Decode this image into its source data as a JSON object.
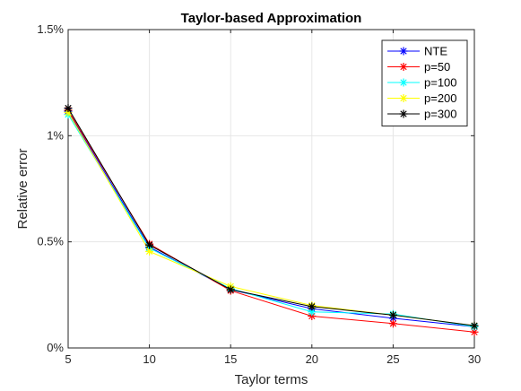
{
  "chart_data": {
    "type": "line",
    "title": "Taylor-based Approximation",
    "xlabel": "Taylor terms",
    "ylabel": "Relative error",
    "x": [
      5,
      10,
      15,
      20,
      25,
      30
    ],
    "xlim": [
      5,
      30
    ],
    "ylim": [
      0,
      1.5
    ],
    "x_ticks": [
      "5",
      "10",
      "15",
      "20",
      "25",
      "30"
    ],
    "y_tick_values": [
      0,
      0.5,
      1,
      1.5
    ],
    "y_ticks": [
      "0%",
      "0.5%",
      "1%",
      "1.5%"
    ],
    "grid": true,
    "legend_position": "top-right",
    "marker": "asterisk",
    "series": [
      {
        "name": "NTE",
        "color": "#0000ff",
        "values": [
          1.115,
          0.475,
          0.275,
          0.185,
          0.14,
          0.1
        ]
      },
      {
        "name": "p=50",
        "color": "#ff0000",
        "values": [
          1.12,
          0.49,
          0.27,
          0.15,
          0.115,
          0.075
        ]
      },
      {
        "name": "p=100",
        "color": "#00ffff",
        "values": [
          1.1,
          0.47,
          0.28,
          0.17,
          0.16,
          0.1
        ]
      },
      {
        "name": "p=200",
        "color": "#ffff00",
        "values": [
          1.11,
          0.455,
          0.29,
          0.2,
          0.155,
          0.105
        ]
      },
      {
        "name": "p=300",
        "color": "#000000",
        "values": [
          1.13,
          0.485,
          0.275,
          0.195,
          0.155,
          0.105
        ]
      }
    ]
  }
}
